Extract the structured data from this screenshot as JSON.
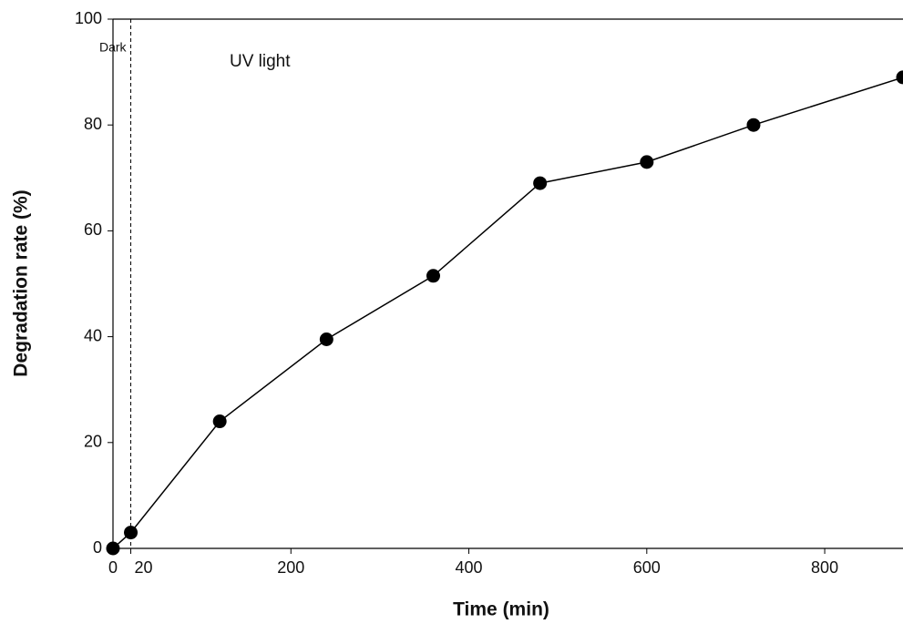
{
  "chart_data": {
    "type": "line",
    "x_label": "Time (min)",
    "y_label": "Degradation rate (%)",
    "annotations": [
      "Dark",
      "UV light"
    ],
    "dark_boundary": 20,
    "x": [
      0,
      20,
      120,
      240,
      360,
      480,
      600,
      720,
      888
    ],
    "series": [
      {
        "color": "#000000",
        "values": [
          0,
          3,
          24,
          39.5,
          51.5,
          69,
          73,
          80,
          89
        ]
      }
    ],
    "xlim": [
      0,
      888
    ],
    "ylim": [
      0,
      100
    ],
    "xticks": [
      0,
      20,
      200,
      400,
      600,
      800
    ],
    "yticks": [
      0,
      20,
      40,
      60,
      80,
      100
    ]
  }
}
